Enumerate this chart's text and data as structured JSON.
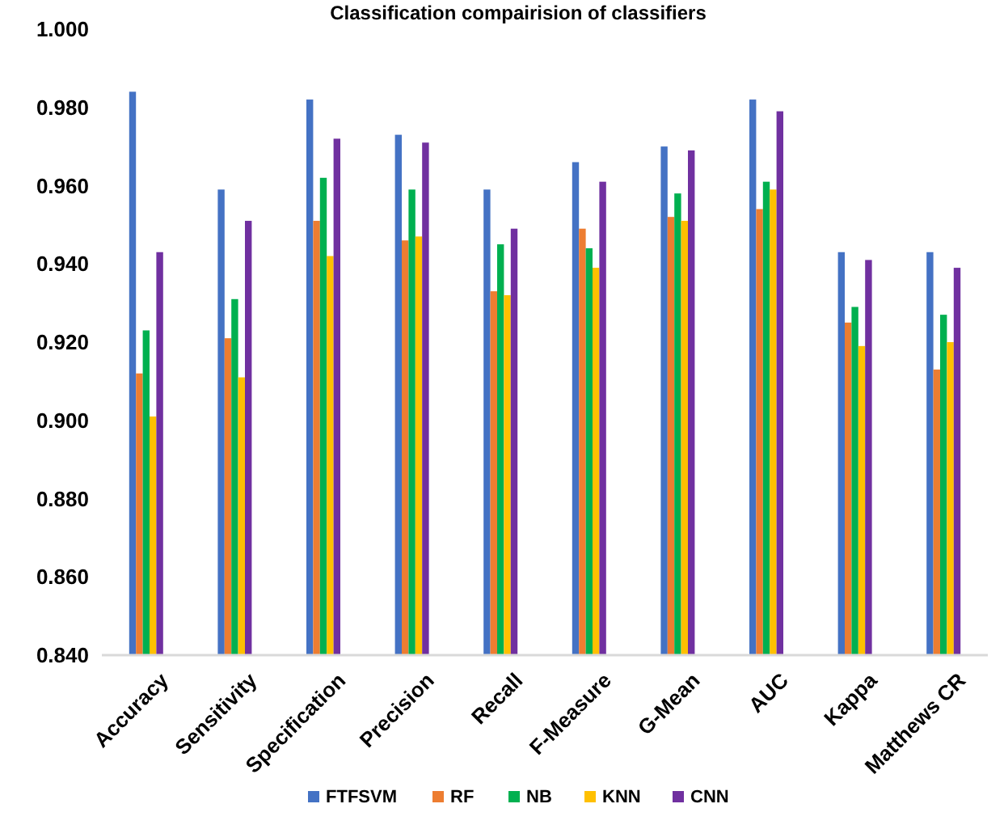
{
  "chart_data": {
    "type": "bar",
    "title": "Classification compairision of classifiers",
    "categories": [
      "Accuracy",
      "Sensitivity",
      "Specification",
      "Precision",
      "Recall",
      "F-Measure",
      "G-Mean",
      "AUC",
      "Kappa",
      "Matthews CR"
    ],
    "series": [
      {
        "name": "FTFSVM",
        "color": "#4472c4",
        "values": [
          0.984,
          0.959,
          0.982,
          0.973,
          0.959,
          0.966,
          0.97,
          0.982,
          0.943,
          0.943
        ]
      },
      {
        "name": "RF",
        "color": "#ed7d31",
        "values": [
          0.912,
          0.921,
          0.951,
          0.946,
          0.933,
          0.949,
          0.952,
          0.954,
          0.925,
          0.913
        ]
      },
      {
        "name": "NB",
        "color": "#00b050",
        "values": [
          0.923,
          0.931,
          0.962,
          0.959,
          0.945,
          0.944,
          0.958,
          0.961,
          0.929,
          0.927
        ]
      },
      {
        "name": "KNN",
        "color": "#ffc000",
        "values": [
          0.901,
          0.911,
          0.942,
          0.947,
          0.932,
          0.939,
          0.951,
          0.959,
          0.919,
          0.92
        ]
      },
      {
        "name": "CNN",
        "color": "#7030a0",
        "values": [
          0.943,
          0.951,
          0.972,
          0.971,
          0.949,
          0.961,
          0.969,
          0.979,
          0.941,
          0.939
        ]
      }
    ],
    "ylim": [
      0.84,
      1.0
    ],
    "yticks": [
      {
        "value": 0.84,
        "label": "0.840"
      },
      {
        "value": 0.86,
        "label": "0.860"
      },
      {
        "value": 0.88,
        "label": "0.880"
      },
      {
        "value": 0.9,
        "label": "0.900"
      },
      {
        "value": 0.92,
        "label": "0.920"
      },
      {
        "value": 0.94,
        "label": "0.940"
      },
      {
        "value": 0.96,
        "label": "0.960"
      },
      {
        "value": 0.98,
        "label": "0.980"
      },
      {
        "value": 1.0,
        "label": "1.000"
      }
    ],
    "grid": false,
    "legend": "bottom"
  }
}
